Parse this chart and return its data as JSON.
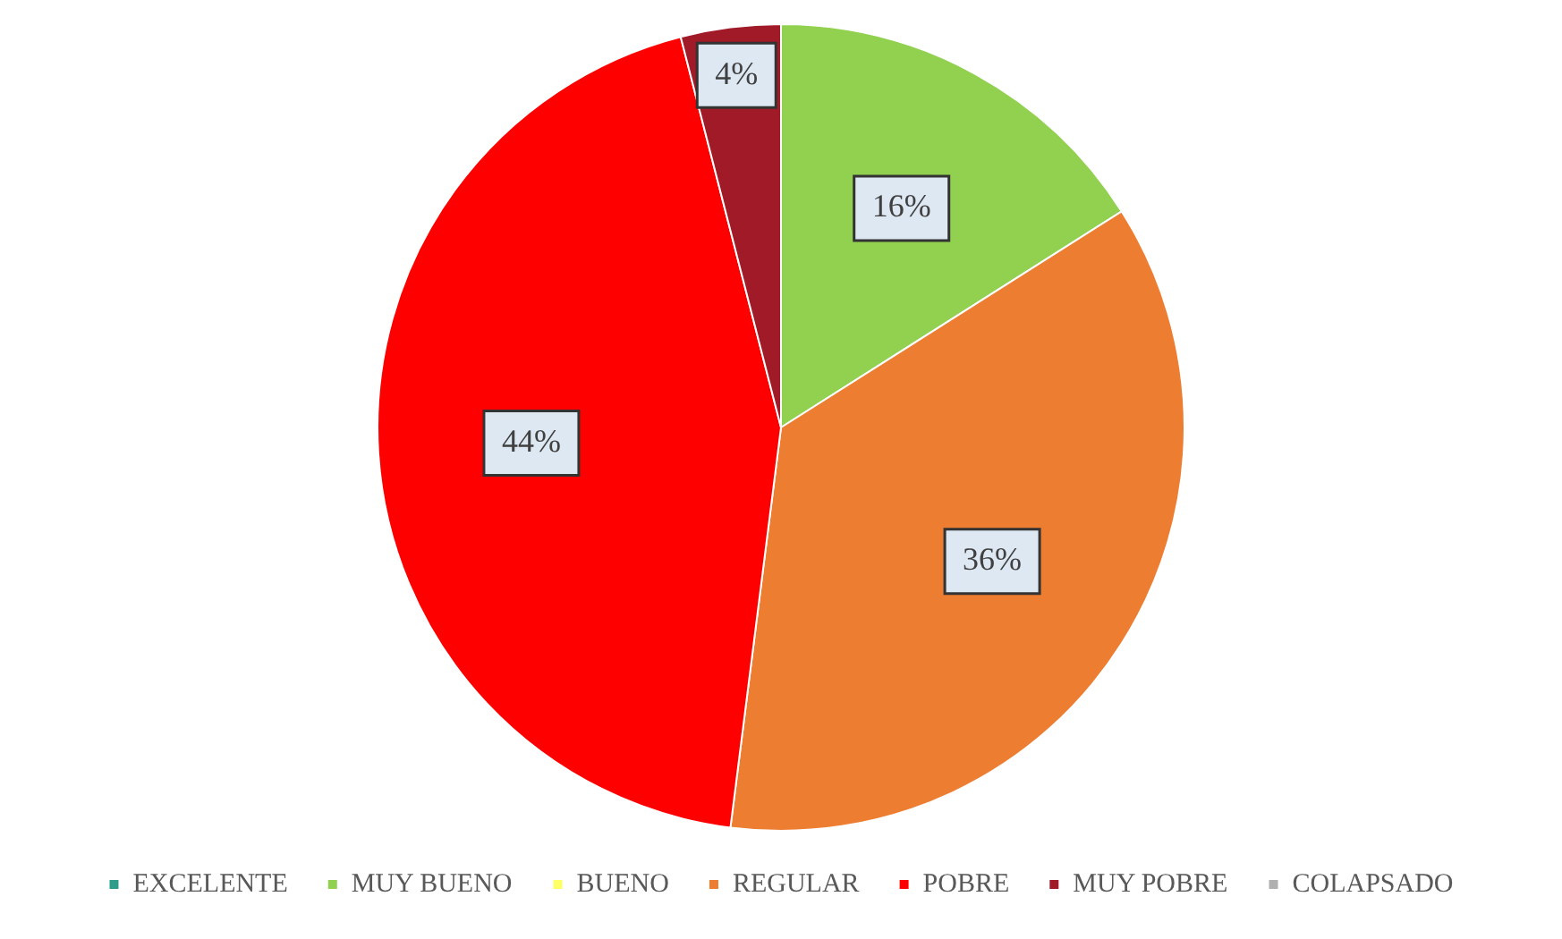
{
  "chart_data": {
    "type": "pie",
    "categories": [
      "EXCELENTE",
      "MUY BUENO",
      "BUENO",
      "REGULAR",
      "POBRE",
      "MUY POBRE",
      "COLAPSADO"
    ],
    "values": [
      0,
      16,
      0,
      36,
      44,
      4,
      0
    ],
    "colors": [
      "#2e9e8a",
      "#92d050",
      "#ffff66",
      "#ed7d31",
      "#ff0000",
      "#a01a28",
      "#b0b0b0"
    ],
    "value_labels": [
      null,
      "16%",
      null,
      "36%",
      "44%",
      "4%",
      null
    ],
    "legend": "bottom"
  }
}
